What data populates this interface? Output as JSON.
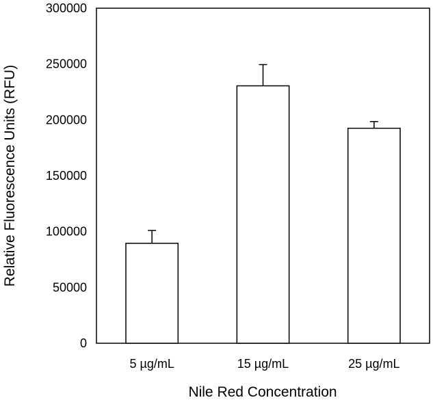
{
  "chart_data": {
    "type": "bar",
    "title": "",
    "xlabel": "Nile Red Concentration",
    "ylabel": "Relative Fluorescence Units (RFU)",
    "categories": [
      "5 µg/mL",
      "15 µg/mL",
      "25 µg/mL"
    ],
    "values": [
      89500,
      230500,
      192500
    ],
    "error_plus": [
      11500,
      19000,
      6000
    ],
    "ylim": [
      0,
      300000
    ],
    "yticks": [
      0,
      50000,
      100000,
      150000,
      200000,
      250000,
      300000
    ],
    "ytick_labels": [
      "0",
      "50000",
      "100000",
      "150000",
      "200000",
      "250000",
      "300000"
    ],
    "grid": false,
    "bar_fill": "#ffffff",
    "bar_stroke": "#000000"
  }
}
